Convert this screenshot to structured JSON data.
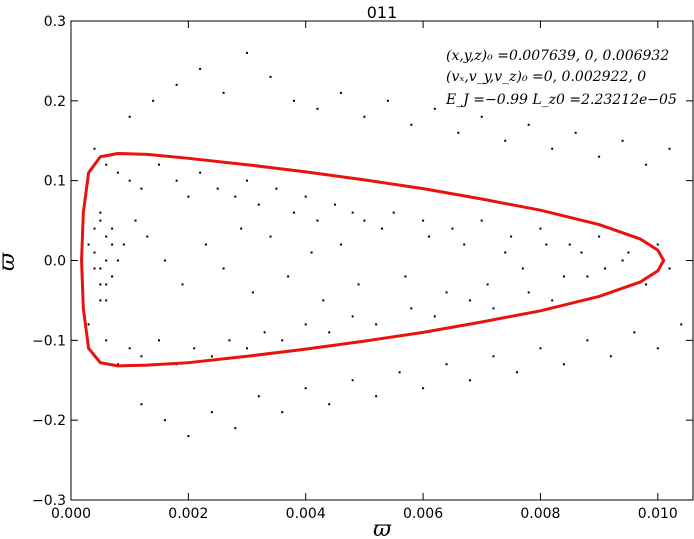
{
  "chart_data": {
    "type": "scatter",
    "title": "011",
    "xlabel": "ϖ",
    "ylabel": "ϖ̇",
    "xlim": [
      0.0,
      0.0106
    ],
    "ylim": [
      -0.3,
      0.3
    ],
    "xticks": [
      {
        "value": 0.0,
        "label": "0.000"
      },
      {
        "value": 0.002,
        "label": "0.002"
      },
      {
        "value": 0.004,
        "label": "0.004"
      },
      {
        "value": 0.006,
        "label": "0.006"
      },
      {
        "value": 0.008,
        "label": "0.008"
      },
      {
        "value": 0.01,
        "label": "0.010"
      }
    ],
    "yticks": [
      {
        "value": -0.3,
        "label": "−0.3"
      },
      {
        "value": -0.2,
        "label": "−0.2"
      },
      {
        "value": -0.1,
        "label": "−0.1"
      },
      {
        "value": 0.0,
        "label": "0.0"
      },
      {
        "value": 0.1,
        "label": "0.1"
      },
      {
        "value": 0.2,
        "label": "0.2"
      },
      {
        "value": 0.3,
        "label": "0.3"
      }
    ],
    "grid": false,
    "annotations": [
      "(x,y,z)₀ =0.007639, 0, 0.006932",
      "(vₓ,v_y,v_z)₀ =0, 0.002922, 0",
      "E_J =−0.99  L_z0 =2.23212e−05"
    ],
    "series": [
      {
        "kind": "scatter",
        "color": "#000000",
        "points": [
          [
            0.0004,
            0.14
          ],
          [
            0.0006,
            0.12
          ],
          [
            0.0008,
            0.11
          ],
          [
            0.001,
            0.1
          ],
          [
            0.0012,
            0.09
          ],
          [
            0.0015,
            0.12
          ],
          [
            0.0018,
            0.1
          ],
          [
            0.002,
            0.08
          ],
          [
            0.0022,
            0.11
          ],
          [
            0.0025,
            0.09
          ],
          [
            0.0028,
            0.08
          ],
          [
            0.003,
            0.1
          ],
          [
            0.0032,
            0.07
          ],
          [
            0.0035,
            0.09
          ],
          [
            0.0038,
            0.06
          ],
          [
            0.004,
            0.08
          ],
          [
            0.0042,
            0.05
          ],
          [
            0.0045,
            0.07
          ],
          [
            0.0048,
            0.06
          ],
          [
            0.005,
            0.05
          ],
          [
            0.0055,
            0.06
          ],
          [
            0.006,
            0.05
          ],
          [
            0.0065,
            0.04
          ],
          [
            0.007,
            0.05
          ],
          [
            0.0075,
            0.03
          ],
          [
            0.008,
            0.04
          ],
          [
            0.0085,
            0.02
          ],
          [
            0.009,
            0.03
          ],
          [
            0.0095,
            0.01
          ],
          [
            0.01,
            0.02
          ],
          [
            0.0102,
            -0.01
          ],
          [
            0.0098,
            -0.03
          ],
          [
            0.0092,
            -0.04
          ],
          [
            0.0088,
            -0.02
          ],
          [
            0.0082,
            -0.05
          ],
          [
            0.0078,
            -0.04
          ],
          [
            0.0072,
            -0.06
          ],
          [
            0.0068,
            -0.05
          ],
          [
            0.0062,
            -0.07
          ],
          [
            0.0058,
            -0.06
          ],
          [
            0.0052,
            -0.08
          ],
          [
            0.0048,
            -0.07
          ],
          [
            0.0044,
            -0.09
          ],
          [
            0.004,
            -0.08
          ],
          [
            0.0036,
            -0.1
          ],
          [
            0.0033,
            -0.09
          ],
          [
            0.003,
            -0.11
          ],
          [
            0.0027,
            -0.1
          ],
          [
            0.0024,
            -0.12
          ],
          [
            0.0021,
            -0.11
          ],
          [
            0.0018,
            -0.13
          ],
          [
            0.0015,
            -0.1
          ],
          [
            0.0012,
            -0.12
          ],
          [
            0.001,
            -0.11
          ],
          [
            0.0008,
            -0.13
          ],
          [
            0.0006,
            -0.1
          ],
          [
            0.0004,
            -0.12
          ],
          [
            0.0003,
            -0.08
          ],
          [
            0.0005,
            -0.05
          ],
          [
            0.0007,
            -0.02
          ],
          [
            0.0009,
            0.02
          ],
          [
            0.0011,
            0.05
          ],
          [
            0.0013,
            0.03
          ],
          [
            0.0016,
            0.0
          ],
          [
            0.0019,
            -0.03
          ],
          [
            0.0023,
            0.02
          ],
          [
            0.0026,
            -0.01
          ],
          [
            0.0029,
            0.04
          ],
          [
            0.0031,
            -0.04
          ],
          [
            0.0034,
            0.03
          ],
          [
            0.0037,
            -0.02
          ],
          [
            0.0041,
            0.01
          ],
          [
            0.0043,
            -0.05
          ],
          [
            0.0046,
            0.02
          ],
          [
            0.0049,
            -0.03
          ],
          [
            0.0053,
            0.04
          ],
          [
            0.0057,
            -0.02
          ],
          [
            0.0061,
            0.03
          ],
          [
            0.0064,
            -0.04
          ],
          [
            0.0067,
            0.02
          ],
          [
            0.0071,
            -0.03
          ],
          [
            0.0074,
            0.01
          ],
          [
            0.0077,
            -0.01
          ],
          [
            0.0081,
            0.02
          ],
          [
            0.0084,
            -0.02
          ],
          [
            0.0087,
            0.01
          ],
          [
            0.0091,
            -0.01
          ],
          [
            0.0094,
            0.0
          ],
          [
            0.001,
            0.18
          ],
          [
            0.0014,
            0.2
          ],
          [
            0.0018,
            0.22
          ],
          [
            0.0022,
            0.24
          ],
          [
            0.0026,
            0.21
          ],
          [
            0.003,
            0.26
          ],
          [
            0.0034,
            0.23
          ],
          [
            0.0038,
            0.2
          ],
          [
            0.0042,
            0.19
          ],
          [
            0.0046,
            0.21
          ],
          [
            0.005,
            0.18
          ],
          [
            0.0054,
            0.2
          ],
          [
            0.0058,
            0.17
          ],
          [
            0.0062,
            0.19
          ],
          [
            0.0066,
            0.16
          ],
          [
            0.007,
            0.18
          ],
          [
            0.0074,
            0.15
          ],
          [
            0.0078,
            0.17
          ],
          [
            0.0082,
            0.14
          ],
          [
            0.0086,
            0.16
          ],
          [
            0.009,
            0.13
          ],
          [
            0.0094,
            0.15
          ],
          [
            0.0098,
            0.12
          ],
          [
            0.0102,
            0.14
          ],
          [
            0.0012,
            -0.18
          ],
          [
            0.0016,
            -0.2
          ],
          [
            0.002,
            -0.22
          ],
          [
            0.0024,
            -0.19
          ],
          [
            0.0028,
            -0.21
          ],
          [
            0.0032,
            -0.17
          ],
          [
            0.0036,
            -0.19
          ],
          [
            0.004,
            -0.16
          ],
          [
            0.0044,
            -0.18
          ],
          [
            0.0048,
            -0.15
          ],
          [
            0.0052,
            -0.17
          ],
          [
            0.0056,
            -0.14
          ],
          [
            0.006,
            -0.16
          ],
          [
            0.0064,
            -0.13
          ],
          [
            0.0068,
            -0.15
          ],
          [
            0.0072,
            -0.12
          ],
          [
            0.0076,
            -0.14
          ],
          [
            0.008,
            -0.11
          ],
          [
            0.0084,
            -0.13
          ],
          [
            0.0088,
            -0.1
          ],
          [
            0.0092,
            -0.12
          ],
          [
            0.0096,
            -0.09
          ],
          [
            0.01,
            -0.11
          ],
          [
            0.0104,
            -0.08
          ],
          [
            0.0005,
            0.05
          ],
          [
            0.0006,
            0.03
          ],
          [
            0.0005,
            -0.01
          ],
          [
            0.0006,
            -0.03
          ],
          [
            0.0004,
            0.01
          ],
          [
            0.0007,
            0.04
          ],
          [
            0.0007,
            -0.02
          ],
          [
            0.0003,
            0.02
          ],
          [
            0.0008,
            0.0
          ],
          [
            0.0005,
            0.06
          ],
          [
            0.0006,
            -0.05
          ],
          [
            0.0004,
            0.04
          ],
          [
            0.0007,
            0.02
          ],
          [
            0.0005,
            -0.03
          ],
          [
            0.0006,
            0.0
          ],
          [
            0.0004,
            -0.01
          ]
        ]
      },
      {
        "kind": "curve",
        "color": "#e8130f",
        "points": [
          [
            0.00018,
            0.0
          ],
          [
            0.00021,
            0.06
          ],
          [
            0.0003,
            0.11
          ],
          [
            0.0005,
            0.13
          ],
          [
            0.0008,
            0.134
          ],
          [
            0.0013,
            0.133
          ],
          [
            0.002,
            0.128
          ],
          [
            0.003,
            0.12
          ],
          [
            0.004,
            0.111
          ],
          [
            0.005,
            0.101
          ],
          [
            0.006,
            0.09
          ],
          [
            0.007,
            0.077
          ],
          [
            0.008,
            0.063
          ],
          [
            0.009,
            0.045
          ],
          [
            0.0097,
            0.027
          ],
          [
            0.01,
            0.013
          ],
          [
            0.0101,
            0.0
          ],
          [
            0.01,
            -0.013
          ],
          [
            0.0097,
            -0.027
          ],
          [
            0.009,
            -0.045
          ],
          [
            0.008,
            -0.063
          ],
          [
            0.007,
            -0.077
          ],
          [
            0.006,
            -0.09
          ],
          [
            0.005,
            -0.101
          ],
          [
            0.004,
            -0.111
          ],
          [
            0.003,
            -0.12
          ],
          [
            0.002,
            -0.128
          ],
          [
            0.0013,
            -0.131
          ],
          [
            0.0008,
            -0.132
          ],
          [
            0.0005,
            -0.128
          ],
          [
            0.0003,
            -0.11
          ],
          [
            0.00021,
            -0.06
          ],
          [
            0.00018,
            0.0
          ]
        ]
      }
    ]
  }
}
